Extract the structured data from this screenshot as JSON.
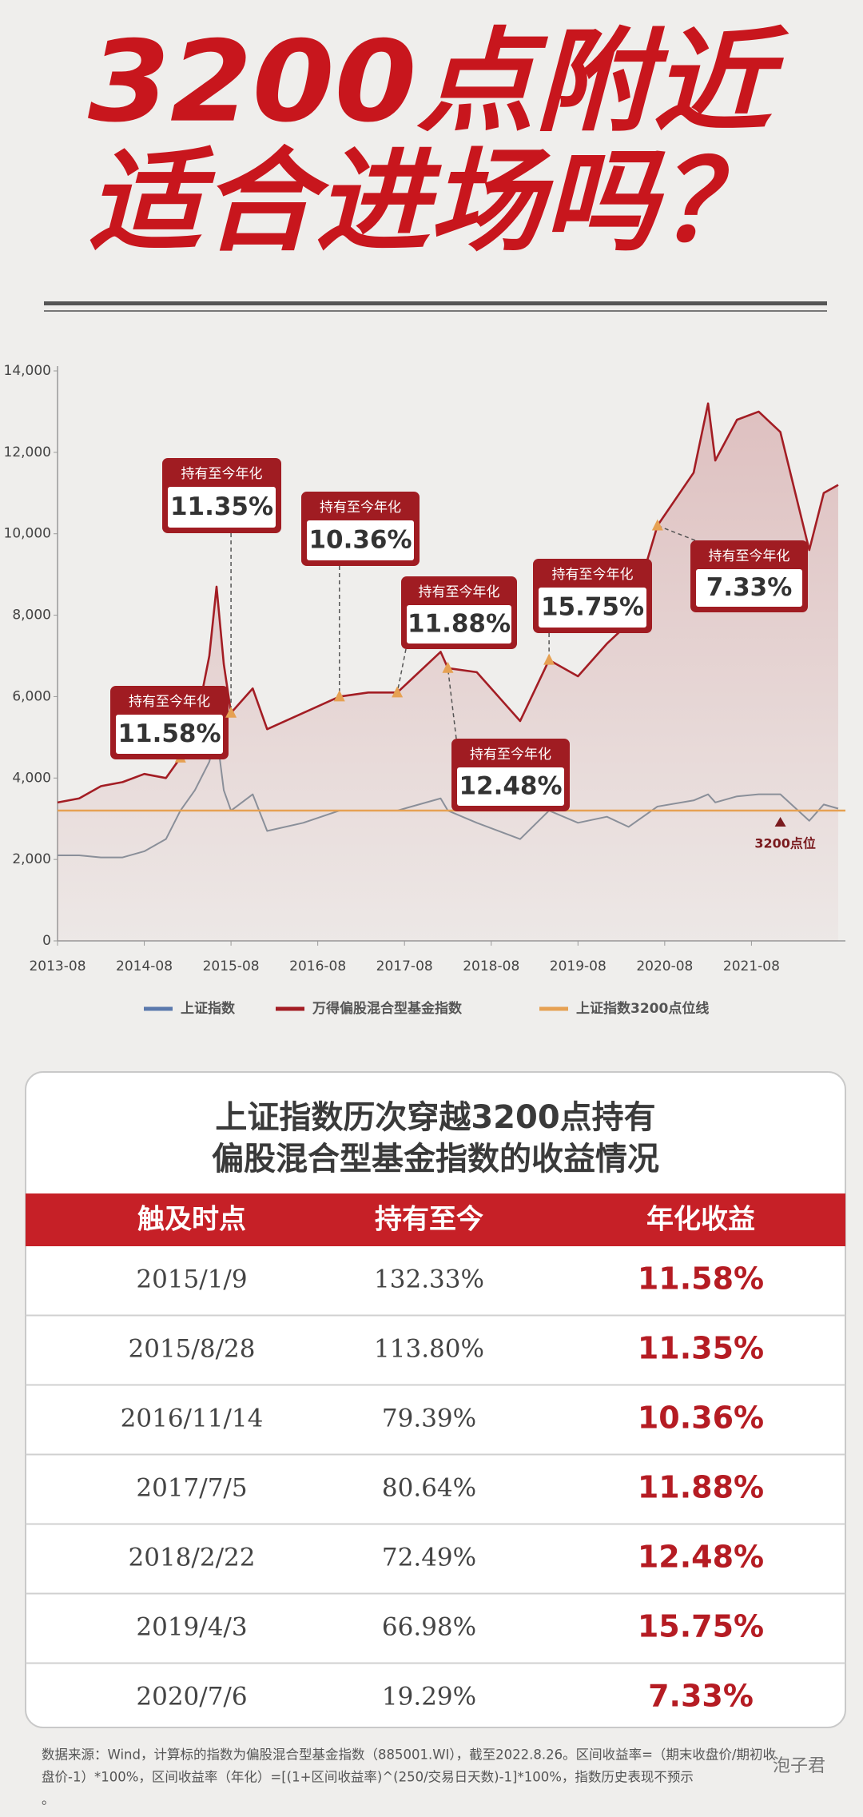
{
  "title": [
    "3200点附近",
    "适合进场吗？"
  ],
  "chart_data": {
    "type": "line",
    "x": [
      "2013-08",
      "2013-11",
      "2014-02",
      "2014-05",
      "2014-08",
      "2014-11",
      "2015-01",
      "2015-03",
      "2015-05",
      "2015-06",
      "2015-07",
      "2015-08",
      "2015-11",
      "2016-01",
      "2016-06",
      "2016-11",
      "2017-03",
      "2017-07",
      "2018-01",
      "2018-02",
      "2018-06",
      "2018-12",
      "2019-04",
      "2019-08",
      "2019-12",
      "2020-03",
      "2020-07",
      "2020-12",
      "2021-02",
      "2021-03",
      "2021-06",
      "2021-09",
      "2021-12",
      "2022-04",
      "2022-06",
      "2022-08"
    ],
    "series": [
      {
        "name": "上证指数",
        "color": "#8a8f99",
        "values": [
          2100,
          2100,
          2050,
          2050,
          2200,
          2500,
          3200,
          3700,
          4400,
          5100,
          3700,
          3200,
          3600,
          2700,
          2900,
          3200,
          3200,
          3200,
          3500,
          3200,
          2900,
          2500,
          3200,
          2900,
          3050,
          2800,
          3300,
          3450,
          3600,
          3400,
          3550,
          3600,
          3600,
          2950,
          3350,
          3250
        ]
      },
      {
        "name": "万得偏股混合型基金指数",
        "color": "#a31d24",
        "values": [
          3400,
          3500,
          3800,
          3900,
          4100,
          4000,
          4500,
          5200,
          7000,
          8700,
          6800,
          5600,
          6200,
          5200,
          5600,
          6000,
          6100,
          6100,
          7100,
          6700,
          6600,
          5400,
          6900,
          6500,
          7300,
          7800,
          10200,
          11500,
          13200,
          11800,
          12800,
          13000,
          12500,
          9600,
          11000,
          11200
        ]
      }
    ],
    "legend_colors": [
      "#5b79ad",
      "#a31d24"
    ],
    "reference_line": {
      "name": "上证指数3200点位线",
      "value": 3200,
      "color": "#e6a153",
      "label": "3200点位"
    },
    "xlim": [
      "2013-08",
      "2022-09"
    ],
    "xticks": [
      "2013-08",
      "2014-08",
      "2015-08",
      "2016-08",
      "2017-08",
      "2018-08",
      "2019-08",
      "2020-08",
      "2021-08"
    ],
    "ylim": [
      0,
      14000
    ],
    "yticks": [
      0,
      {
        "value": 2000,
        "label": "2,000"
      },
      {
        "value": 4000,
        "label": "4,000"
      },
      {
        "value": 6000,
        "label": "6,000"
      },
      {
        "value": 8000,
        "label": "8,000"
      },
      {
        "value": 10000,
        "label": "10,000"
      },
      {
        "value": 12000,
        "label": "12,000"
      },
      {
        "value": 14000,
        "label": "14,000"
      }
    ],
    "annotations": [
      {
        "label": "持有至今年化",
        "value": "11.58%",
        "x": "2015-01"
      },
      {
        "label": "持有至今年化",
        "value": "11.35%",
        "x": "2015-08"
      },
      {
        "label": "持有至今年化",
        "value": "10.36%",
        "x": "2016-11"
      },
      {
        "label": "持有至今年化",
        "value": "11.88%",
        "x": "2017-07"
      },
      {
        "label": "持有至今年化",
        "value": "12.48%",
        "x": "2018-02"
      },
      {
        "label": "持有至今年化",
        "value": "15.75%",
        "x": "2019-04"
      },
      {
        "label": "持有至今年化",
        "value": "7.33%",
        "x": "2020-07"
      }
    ]
  },
  "table": {
    "title": [
      "上证指数历次穿越3200点持有",
      "偏股混合型基金指数的收益情况"
    ],
    "header": [
      "触及时点",
      "持有至今",
      "年化收益"
    ],
    "rows": [
      [
        "2015/1/9",
        "132.33%",
        "11.58%"
      ],
      [
        "2015/8/28",
        "113.80%",
        "11.35%"
      ],
      [
        "2016/11/14",
        "79.39%",
        "10.36%"
      ],
      [
        "2017/7/5",
        "80.64%",
        "11.88%"
      ],
      [
        "2018/2/22",
        "72.49%",
        "12.48%"
      ],
      [
        "2019/4/3",
        "66.98%",
        "15.75%"
      ],
      [
        "2020/7/6",
        "19.29%",
        "7.33%"
      ]
    ]
  },
  "footnote": [
    "数据来源：Wind，计算标的指数为偏股混合型基金指数（885001.WI），截至2022.8.26。区间收益率=（期末收盘价/期初收",
    "盘价-1）*100%，区间收益率（年化）=[(1+区间收益率)^(250/交易日天数)-1]*100%，指数历史表现不预示",
    "。"
  ],
  "watermark": "泡子君"
}
